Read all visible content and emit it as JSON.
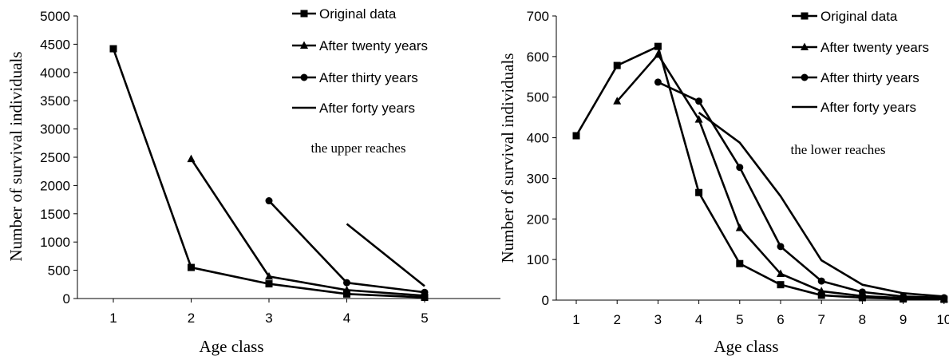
{
  "chart_data": [
    {
      "type": "line",
      "xlabel": "Age class",
      "ylabel": "Number of survival individuals",
      "annotation": "the upper reaches",
      "xlim": [
        1,
        5
      ],
      "ylim": [
        0,
        5000
      ],
      "x_ticks": [
        "1",
        "2",
        "3",
        "4",
        "5"
      ],
      "y_ticks": [
        "0",
        "500",
        "1000",
        "1500",
        "2000",
        "2500",
        "3000",
        "3500",
        "4000",
        "4500",
        "5000"
      ],
      "legend_position": "top-right",
      "grid": false,
      "series": [
        {
          "name": "Original data",
          "marker": "square",
          "points": [
            [
              1,
              4420
            ],
            [
              2,
              550
            ],
            [
              3,
              260
            ],
            [
              4,
              80
            ],
            [
              5,
              20
            ]
          ]
        },
        {
          "name": "After twenty years",
          "marker": "triangle",
          "points": [
            [
              2,
              2470
            ],
            [
              3,
              390
            ],
            [
              4,
              150
            ],
            [
              5,
              50
            ]
          ]
        },
        {
          "name": "After thirty years",
          "marker": "circle",
          "points": [
            [
              3,
              1730
            ],
            [
              4,
              280
            ],
            [
              5,
              110
            ]
          ]
        },
        {
          "name": "After forty years",
          "marker": "none",
          "points": [
            [
              4,
              1320
            ],
            [
              5,
              220
            ]
          ]
        }
      ]
    },
    {
      "type": "line",
      "xlabel": "Age class",
      "ylabel": "Number of survival individuals",
      "annotation": "the lower reaches",
      "xlim": [
        1,
        10
      ],
      "ylim": [
        0,
        700
      ],
      "x_ticks": [
        "1",
        "2",
        "3",
        "4",
        "5",
        "6",
        "7",
        "8",
        "9",
        "10"
      ],
      "y_ticks": [
        "0",
        "100",
        "200",
        "300",
        "400",
        "500",
        "600",
        "700"
      ],
      "legend_position": "top-right",
      "grid": false,
      "series": [
        {
          "name": "Original data",
          "marker": "square",
          "points": [
            [
              1,
              405
            ],
            [
              2,
              578
            ],
            [
              3,
              625
            ],
            [
              4,
              265
            ],
            [
              5,
              90
            ],
            [
              6,
              38
            ],
            [
              7,
              12
            ],
            [
              8,
              6
            ],
            [
              9,
              3
            ],
            [
              10,
              2
            ]
          ]
        },
        {
          "name": "After twenty years",
          "marker": "triangle",
          "points": [
            [
              2,
              490
            ],
            [
              3,
              605
            ],
            [
              4,
              445
            ],
            [
              5,
              178
            ],
            [
              6,
              65
            ],
            [
              7,
              22
            ],
            [
              8,
              10
            ],
            [
              9,
              5
            ],
            [
              10,
              3
            ]
          ]
        },
        {
          "name": "After thirty years",
          "marker": "circle",
          "points": [
            [
              3,
              537
            ],
            [
              4,
              490
            ],
            [
              5,
              327
            ],
            [
              6,
              132
            ],
            [
              7,
              47
            ],
            [
              8,
              20
            ],
            [
              9,
              9
            ],
            [
              10,
              6
            ]
          ]
        },
        {
          "name": "After forty years",
          "marker": "none",
          "points": [
            [
              4,
              462
            ],
            [
              5,
              388
            ],
            [
              6,
              256
            ],
            [
              7,
              98
            ],
            [
              8,
              38
            ],
            [
              9,
              17
            ],
            [
              10,
              9
            ]
          ]
        }
      ]
    }
  ]
}
